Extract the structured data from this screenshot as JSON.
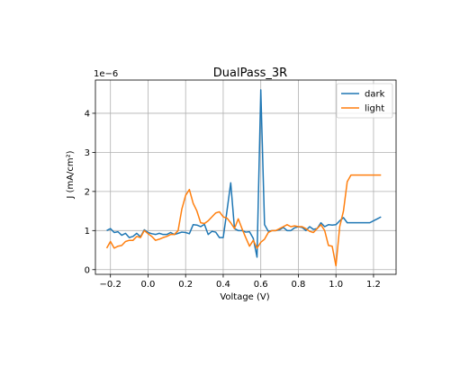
{
  "chart_data": {
    "type": "line",
    "title": "DualPass_3R",
    "xlabel": "Voltage (V)",
    "ylabel": "J (mA/cm²)",
    "y_offset_text": "1e−6",
    "y_scale": 1e-06,
    "xlim": [
      -0.28,
      1.32
    ],
    "ylim": [
      -0.12,
      4.85
    ],
    "x_ticks": [
      -0.2,
      0.0,
      0.2,
      0.4,
      0.6,
      0.8,
      1.0,
      1.2
    ],
    "x_tick_labels": [
      "−0.2",
      "0.0",
      "0.2",
      "0.4",
      "0.6",
      "0.8",
      "1.0",
      "1.2"
    ],
    "y_ticks": [
      0,
      1,
      2,
      3,
      4
    ],
    "y_tick_labels": [
      "0",
      "1",
      "2",
      "3",
      "4"
    ],
    "grid": true,
    "legend_position": "top-right",
    "series": [
      {
        "name": "dark",
        "color": "#1f77b4",
        "x": [
          -0.22,
          -0.2,
          -0.18,
          -0.16,
          -0.14,
          -0.12,
          -0.1,
          -0.08,
          -0.06,
          -0.04,
          -0.02,
          0.0,
          0.02,
          0.04,
          0.06,
          0.08,
          0.1,
          0.12,
          0.14,
          0.16,
          0.18,
          0.2,
          0.22,
          0.24,
          0.26,
          0.28,
          0.3,
          0.32,
          0.34,
          0.36,
          0.38,
          0.4,
          0.42,
          0.44,
          0.46,
          0.48,
          0.5,
          0.52,
          0.54,
          0.56,
          0.58,
          0.6,
          0.62,
          0.64,
          0.66,
          0.68,
          0.7,
          0.72,
          0.74,
          0.76,
          0.78,
          0.8,
          0.82,
          0.84,
          0.86,
          0.88,
          0.9,
          0.92,
          0.94,
          0.96,
          0.98,
          1.0,
          1.02,
          1.04,
          1.06,
          1.08,
          1.1,
          1.12,
          1.14,
          1.16,
          1.18,
          1.2,
          1.22,
          1.24
        ],
        "y": [
          1.0,
          1.05,
          0.95,
          0.97,
          0.88,
          0.93,
          0.82,
          0.85,
          0.93,
          0.84,
          1.02,
          0.95,
          0.92,
          0.9,
          0.93,
          0.9,
          0.9,
          0.95,
          0.9,
          0.93,
          0.96,
          0.95,
          0.92,
          1.15,
          1.14,
          1.1,
          1.16,
          0.9,
          0.98,
          0.96,
          0.82,
          0.82,
          1.5,
          2.22,
          1.05,
          1.0,
          1.0,
          0.96,
          0.97,
          0.8,
          0.32,
          4.6,
          1.15,
          0.98,
          1.0,
          1.0,
          1.02,
          1.08,
          1.0,
          1.0,
          1.07,
          1.1,
          1.08,
          1.0,
          1.1,
          1.03,
          1.05,
          1.2,
          1.1,
          1.15,
          1.14,
          1.15,
          1.25,
          1.33,
          1.2,
          1.2,
          1.2,
          1.2,
          1.2,
          1.2,
          1.2,
          1.25,
          1.3,
          1.35
        ]
      },
      {
        "name": "light",
        "color": "#ff7f0e",
        "x": [
          -0.22,
          -0.2,
          -0.18,
          -0.16,
          -0.14,
          -0.12,
          -0.1,
          -0.08,
          -0.06,
          -0.04,
          -0.02,
          0.0,
          0.02,
          0.04,
          0.06,
          0.08,
          0.1,
          0.12,
          0.14,
          0.16,
          0.18,
          0.2,
          0.22,
          0.24,
          0.26,
          0.28,
          0.3,
          0.32,
          0.34,
          0.36,
          0.38,
          0.4,
          0.42,
          0.44,
          0.46,
          0.48,
          0.5,
          0.52,
          0.54,
          0.56,
          0.58,
          0.6,
          0.62,
          0.64,
          0.66,
          0.68,
          0.7,
          0.72,
          0.74,
          0.76,
          0.78,
          0.8,
          0.82,
          0.84,
          0.86,
          0.88,
          0.9,
          0.92,
          0.94,
          0.96,
          0.98,
          1.0,
          1.02,
          1.04,
          1.06,
          1.08,
          1.1,
          1.12,
          1.14,
          1.16,
          1.18,
          1.2,
          1.22,
          1.24
        ],
        "y": [
          0.55,
          0.72,
          0.55,
          0.6,
          0.62,
          0.72,
          0.75,
          0.75,
          0.85,
          0.82,
          1.0,
          0.92,
          0.85,
          0.75,
          0.78,
          0.82,
          0.85,
          0.9,
          0.9,
          1.0,
          1.55,
          1.9,
          2.05,
          1.7,
          1.5,
          1.2,
          1.18,
          1.25,
          1.35,
          1.45,
          1.48,
          1.35,
          1.32,
          1.2,
          1.05,
          1.3,
          1.05,
          0.82,
          0.6,
          0.75,
          0.55,
          0.7,
          0.78,
          0.95,
          1.0,
          1.0,
          1.05,
          1.1,
          1.15,
          1.1,
          1.12,
          1.1,
          1.1,
          1.05,
          0.98,
          0.95,
          1.05,
          1.15,
          1.0,
          0.62,
          0.6,
          0.1,
          1.1,
          1.5,
          2.25,
          2.42,
          2.42,
          2.42,
          2.42,
          2.42,
          2.42,
          2.42,
          2.42,
          2.42
        ]
      }
    ]
  }
}
